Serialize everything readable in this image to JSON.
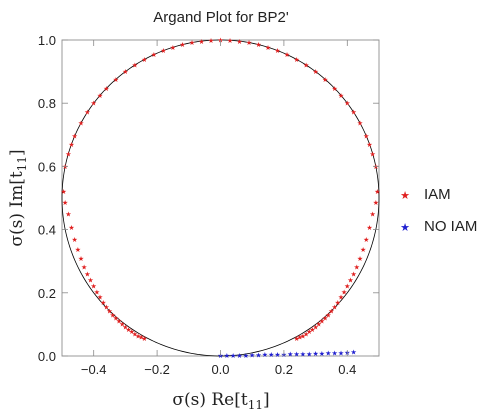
{
  "chart_data": {
    "type": "scatter",
    "title": "Argand Plot for BP2'",
    "xlabel": "σ(s) Re[t",
    "xlabel_sub": "11",
    "xlabel_end": "]",
    "ylabel": "σ(s) Im[t",
    "ylabel_sub": "11",
    "ylabel_end": "]",
    "xlim": [
      -0.5,
      0.5
    ],
    "ylim": [
      0.0,
      1.0
    ],
    "x_ticks": [
      -0.4,
      -0.2,
      0.0,
      0.2,
      0.4
    ],
    "x_tick_labels": [
      "−0.4",
      "−0.2",
      "0.0",
      "0.2",
      "0.4"
    ],
    "y_ticks": [
      0.0,
      0.2,
      0.4,
      0.6,
      0.8,
      1.0
    ],
    "y_tick_labels": [
      "0.0",
      "0.2",
      "0.4",
      "0.6",
      "0.8",
      "1.0"
    ],
    "grid": false,
    "legend_position": "right",
    "reference_curve": {
      "type": "circle",
      "center": [
        0.0,
        0.5
      ],
      "radius": 0.5,
      "color": "#000000"
    },
    "series": [
      {
        "name": "IAM",
        "color": "#e02020",
        "marker": "star",
        "points": [
          [
            -0.24,
            0.055
          ],
          [
            -0.25,
            0.06
          ],
          [
            -0.26,
            0.064
          ],
          [
            -0.27,
            0.07
          ],
          [
            -0.28,
            0.077
          ],
          [
            -0.29,
            0.084
          ],
          [
            -0.3,
            0.092
          ],
          [
            -0.31,
            0.101
          ],
          [
            -0.32,
            0.11
          ],
          [
            -0.33,
            0.12
          ],
          [
            -0.34,
            0.13
          ],
          [
            -0.35,
            0.142
          ],
          [
            -0.36,
            0.155
          ],
          [
            -0.37,
            0.17
          ],
          [
            -0.38,
            0.186
          ],
          [
            -0.39,
            0.203
          ],
          [
            -0.4,
            0.221
          ],
          [
            -0.41,
            0.24
          ],
          [
            -0.42,
            0.26
          ],
          [
            -0.43,
            0.282
          ],
          [
            -0.44,
            0.308
          ],
          [
            -0.45,
            0.337
          ],
          [
            -0.46,
            0.369
          ],
          [
            -0.47,
            0.407
          ],
          [
            -0.48,
            0.45
          ],
          [
            -0.49,
            0.486
          ],
          [
            -0.495,
            0.52
          ],
          [
            -0.49,
            0.6
          ],
          [
            -0.48,
            0.64
          ],
          [
            -0.47,
            0.67
          ],
          [
            -0.46,
            0.696
          ],
          [
            -0.44,
            0.737
          ],
          [
            -0.42,
            0.772
          ],
          [
            -0.4,
            0.8
          ],
          [
            -0.38,
            0.825
          ],
          [
            -0.36,
            0.847
          ],
          [
            -0.33,
            0.875
          ],
          [
            -0.3,
            0.9
          ],
          [
            -0.27,
            0.921
          ],
          [
            -0.24,
            0.939
          ],
          [
            -0.21,
            0.954
          ],
          [
            -0.18,
            0.966
          ],
          [
            -0.15,
            0.977
          ],
          [
            -0.12,
            0.985
          ],
          [
            -0.09,
            0.992
          ],
          [
            -0.06,
            0.996
          ],
          [
            -0.03,
            0.999
          ],
          [
            0.0,
            1.0
          ],
          [
            0.03,
            0.999
          ],
          [
            0.06,
            0.996
          ],
          [
            0.09,
            0.992
          ],
          [
            0.12,
            0.985
          ],
          [
            0.15,
            0.977
          ],
          [
            0.18,
            0.966
          ],
          [
            0.21,
            0.954
          ],
          [
            0.24,
            0.939
          ],
          [
            0.27,
            0.921
          ],
          [
            0.3,
            0.9
          ],
          [
            0.33,
            0.875
          ],
          [
            0.36,
            0.847
          ],
          [
            0.38,
            0.825
          ],
          [
            0.4,
            0.8
          ],
          [
            0.42,
            0.772
          ],
          [
            0.44,
            0.737
          ],
          [
            0.46,
            0.696
          ],
          [
            0.47,
            0.67
          ],
          [
            0.48,
            0.64
          ],
          [
            0.49,
            0.6
          ],
          [
            0.495,
            0.52
          ],
          [
            0.49,
            0.486
          ],
          [
            0.48,
            0.45
          ],
          [
            0.47,
            0.407
          ],
          [
            0.46,
            0.369
          ],
          [
            0.45,
            0.337
          ],
          [
            0.44,
            0.308
          ],
          [
            0.43,
            0.282
          ],
          [
            0.42,
            0.26
          ],
          [
            0.41,
            0.24
          ],
          [
            0.4,
            0.221
          ],
          [
            0.39,
            0.203
          ],
          [
            0.38,
            0.186
          ],
          [
            0.37,
            0.17
          ],
          [
            0.36,
            0.155
          ],
          [
            0.35,
            0.142
          ],
          [
            0.34,
            0.13
          ],
          [
            0.33,
            0.12
          ],
          [
            0.32,
            0.11
          ],
          [
            0.31,
            0.101
          ],
          [
            0.3,
            0.092
          ],
          [
            0.29,
            0.084
          ],
          [
            0.28,
            0.077
          ],
          [
            0.27,
            0.07
          ],
          [
            0.26,
            0.064
          ],
          [
            0.25,
            0.06
          ],
          [
            0.24,
            0.055
          ]
        ]
      },
      {
        "name": "NO IAM",
        "color": "#2020d0",
        "marker": "star",
        "points": [
          [
            0.0,
            0.001
          ],
          [
            0.02,
            0.001
          ],
          [
            0.04,
            0.002
          ],
          [
            0.06,
            0.002
          ],
          [
            0.08,
            0.002
          ],
          [
            0.1,
            0.003
          ],
          [
            0.12,
            0.003
          ],
          [
            0.14,
            0.004
          ],
          [
            0.16,
            0.004
          ],
          [
            0.18,
            0.005
          ],
          [
            0.2,
            0.005
          ],
          [
            0.22,
            0.006
          ],
          [
            0.24,
            0.006
          ],
          [
            0.26,
            0.007
          ],
          [
            0.28,
            0.007
          ],
          [
            0.3,
            0.008
          ],
          [
            0.32,
            0.008
          ],
          [
            0.34,
            0.009
          ],
          [
            0.36,
            0.01
          ],
          [
            0.38,
            0.01
          ],
          [
            0.4,
            0.011
          ],
          [
            0.42,
            0.012
          ]
        ]
      }
    ]
  }
}
